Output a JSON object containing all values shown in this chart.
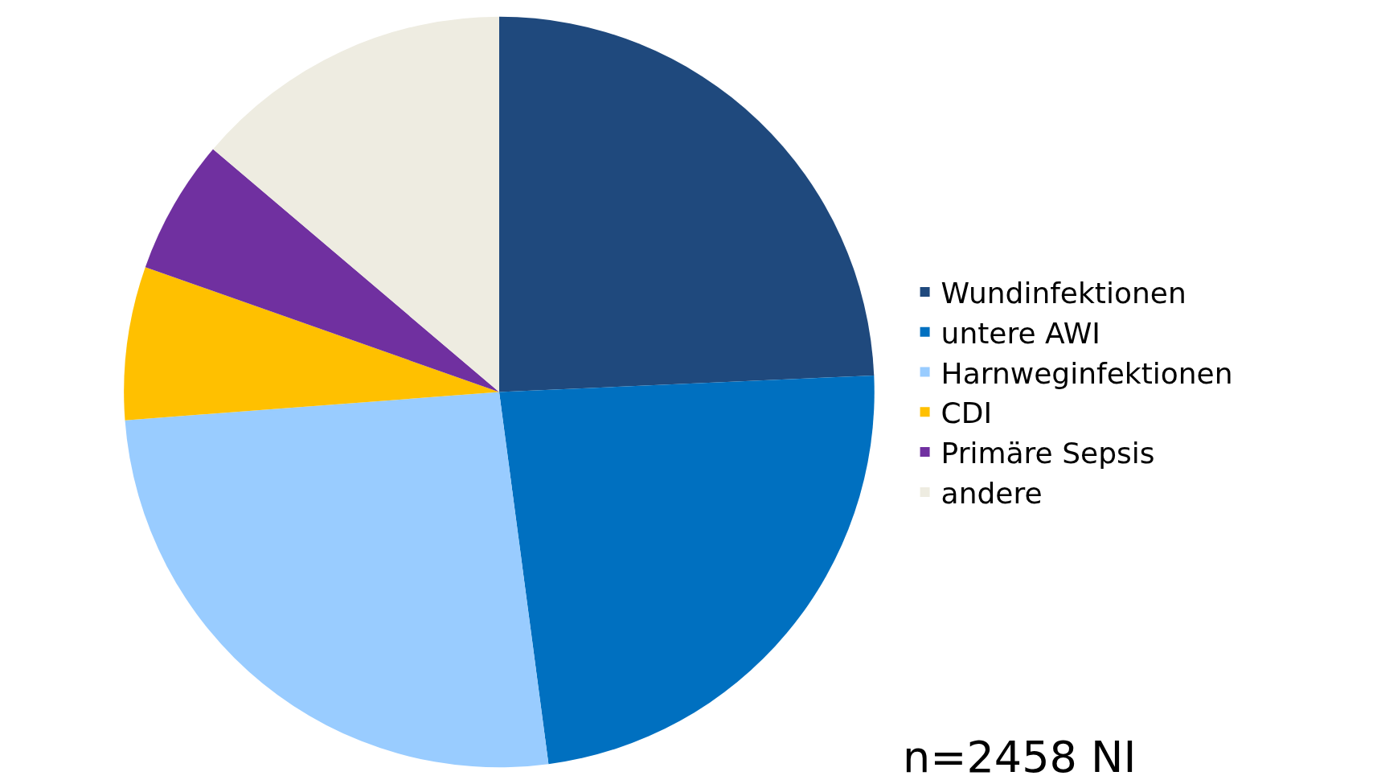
{
  "chart_data": {
    "type": "pie",
    "categories": [
      "Wundinfektionen",
      "untere AWI",
      "Harnweginfektionen",
      "CDI",
      "Primäre Sepsis",
      "andere"
    ],
    "values": [
      24.3,
      23.6,
      25.9,
      6.6,
      5.8,
      13.8
    ],
    "colors": [
      "#1f497d",
      "#0070c0",
      "#99ccff",
      "#ffc000",
      "#7030a0",
      "#eeece1"
    ],
    "legend": "right",
    "annotations": [
      "n=2458 NI"
    ]
  }
}
